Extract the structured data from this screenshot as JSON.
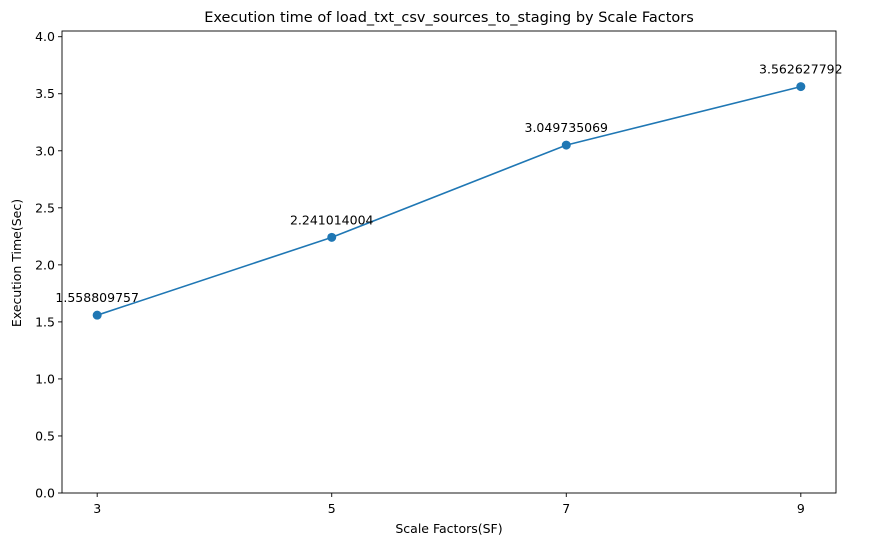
{
  "chart_data": {
    "type": "line",
    "title": "Execution time of load_txt_csv_sources_to_staging by Scale Factors",
    "xlabel": "Scale Factors(SF)",
    "ylabel": "Execution Time(Sec)",
    "x": [
      3,
      5,
      7,
      9
    ],
    "xticks": [
      "3",
      "5",
      "7",
      "9"
    ],
    "xlim": [
      2.7,
      9.3
    ],
    "ylim": [
      0,
      4.05
    ],
    "yticks": [
      "0.0",
      "0.5",
      "1.0",
      "1.5",
      "2.0",
      "2.5",
      "3.0",
      "3.5",
      "4.0"
    ],
    "series": [
      {
        "values": [
          1.558809757,
          2.241014004,
          3.049735069,
          3.562627792
        ],
        "labels": [
          "1.558809757",
          "2.241014004",
          "3.049735069",
          "3.562627792"
        ],
        "color": "#1f77b4",
        "marker": "circle"
      }
    ],
    "grid": false,
    "legend": "none"
  }
}
